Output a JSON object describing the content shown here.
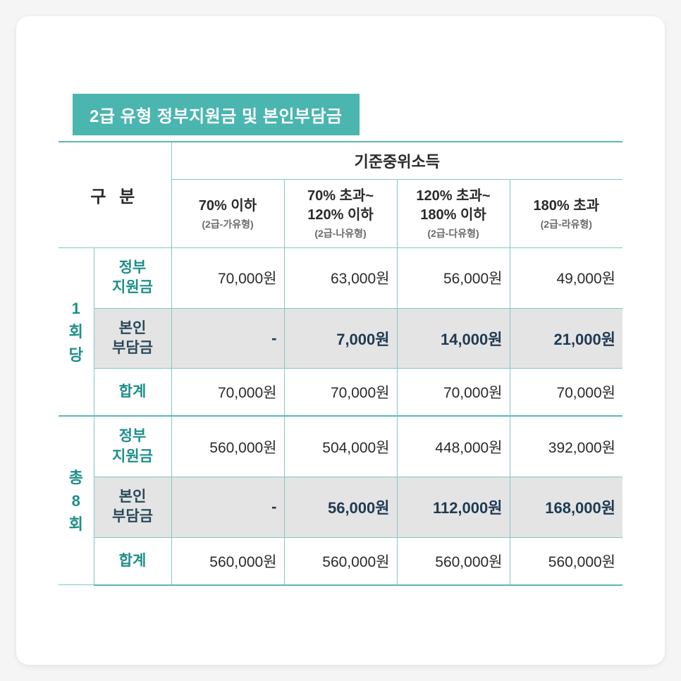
{
  "title": "2급 유형 정부지원금 및 본인부담금",
  "colors": {
    "titlebar_bg": "#4bb5b0",
    "titlebar_text": "#ffffff",
    "border": "#7ec9c4",
    "accent_text": "#1d8f8a",
    "shade_bg": "#e4e4e4",
    "bold_text": "#1f3a52",
    "body_text": "#2a2a2a",
    "card_bg": "#ffffff"
  },
  "table": {
    "gubun": "구  분",
    "income_header": "기준중위소득",
    "columns": [
      {
        "main": "70% 이하",
        "sub": "(2급-가유형)"
      },
      {
        "main": "70% 초과~\n120% 이하",
        "sub": "(2급-나유형)"
      },
      {
        "main": "120% 초과~\n180% 이하",
        "sub": "(2급-다유형)"
      },
      {
        "main": "180% 초과",
        "sub": "(2급-라유형)"
      }
    ],
    "groups": [
      {
        "label": "1\n회\n당",
        "rows": [
          {
            "label": "정부\n지원금",
            "shade": false,
            "cells": [
              "70,000원",
              "63,000원",
              "56,000원",
              "49,000원"
            ]
          },
          {
            "label": "본인\n부담금",
            "shade": true,
            "cells": [
              "-",
              "7,000원",
              "14,000원",
              "21,000원"
            ]
          },
          {
            "label": "합계",
            "shade": false,
            "cells": [
              "70,000원",
              "70,000원",
              "70,000원",
              "70,000원"
            ]
          }
        ]
      },
      {
        "label": "총\n8\n회",
        "rows": [
          {
            "label": "정부\n지원금",
            "shade": false,
            "cells": [
              "560,000원",
              "504,000원",
              "448,000원",
              "392,000원"
            ]
          },
          {
            "label": "본인\n부담금",
            "shade": true,
            "cells": [
              "-",
              "56,000원",
              "112,000원",
              "168,000원"
            ]
          },
          {
            "label": "합계",
            "shade": false,
            "cells": [
              "560,000원",
              "560,000원",
              "560,000원",
              "560,000원"
            ]
          }
        ]
      }
    ]
  }
}
